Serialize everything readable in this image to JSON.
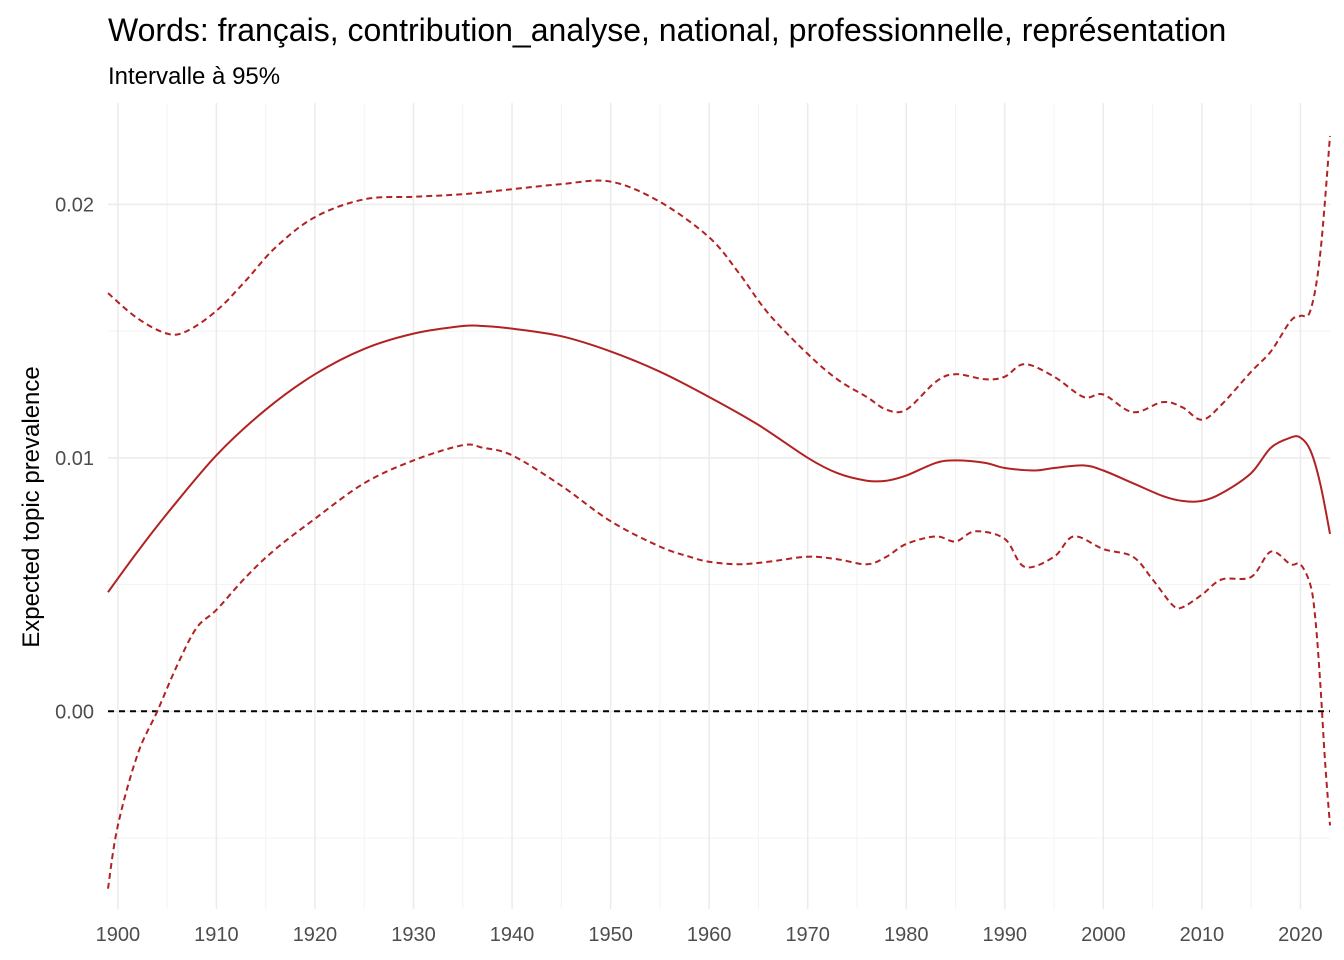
{
  "chart_data": {
    "type": "line",
    "title": "Words: français, contribution_analyse, national, professionnelle, représentation",
    "subtitle": "Intervalle à 95%",
    "xlabel": "",
    "ylabel": "Expected topic prevalence",
    "xlim": [
      1899,
      2023
    ],
    "ylim": [
      -0.0078,
      0.024
    ],
    "x_ticks": [
      1900,
      1910,
      1920,
      1930,
      1940,
      1950,
      1960,
      1970,
      1980,
      1990,
      2000,
      2010,
      2020
    ],
    "x_tick_labels": [
      "1900",
      "1910",
      "1920",
      "1930",
      "1940",
      "1950",
      "1960",
      "1970",
      "1980",
      "1990",
      "2000",
      "2010",
      "2020"
    ],
    "y_ticks": [
      0.0,
      0.01,
      0.02
    ],
    "y_tick_labels": [
      "0.00",
      "0.01",
      "0.02"
    ],
    "grid": true,
    "reference_line": {
      "y": 0,
      "style": "dashed",
      "color": "#000000"
    },
    "colors": {
      "series": "#b22222",
      "reference": "#000000"
    },
    "series": [
      {
        "role": "estimate",
        "style": "solid",
        "x": [
          1899,
          1902,
          1905,
          1910,
          1915,
          1920,
          1925,
          1930,
          1935,
          1937,
          1940,
          1945,
          1950,
          1955,
          1960,
          1965,
          1970,
          1973,
          1976,
          1978,
          1980,
          1983,
          1985,
          1988,
          1990,
          1993,
          1995,
          1998,
          2000,
          2003,
          2006,
          2008,
          2010,
          2012,
          2015,
          2017,
          2019,
          2020,
          2021,
          2022,
          2023
        ],
        "y": [
          0.0047,
          0.0063,
          0.0078,
          0.0101,
          0.0119,
          0.0133,
          0.0143,
          0.0149,
          0.0152,
          0.0152,
          0.0151,
          0.0148,
          0.0142,
          0.0134,
          0.0124,
          0.0113,
          0.01,
          0.0094,
          0.0091,
          0.0091,
          0.0093,
          0.0098,
          0.0099,
          0.0098,
          0.0096,
          0.0095,
          0.0096,
          0.0097,
          0.0095,
          0.009,
          0.0085,
          0.0083,
          0.0083,
          0.0086,
          0.0094,
          0.0104,
          0.0108,
          0.0108,
          0.0103,
          0.009,
          0.007
        ]
      },
      {
        "role": "upper 95%",
        "style": "dashed",
        "x": [
          1899,
          1902,
          1905,
          1907,
          1910,
          1913,
          1916,
          1920,
          1925,
          1930,
          1935,
          1940,
          1945,
          1950,
          1955,
          1960,
          1963,
          1966,
          1970,
          1973,
          1976,
          1978,
          1980,
          1983,
          1985,
          1988,
          1990,
          1992,
          1995,
          1998,
          2000,
          2003,
          2006,
          2008,
          2010,
          2012,
          2015,
          2017,
          2019,
          2020,
          2021,
          2022,
          2023
        ],
        "y": [
          0.0165,
          0.0155,
          0.0149,
          0.015,
          0.0158,
          0.017,
          0.0183,
          0.0195,
          0.0202,
          0.0203,
          0.0204,
          0.0206,
          0.0208,
          0.0209,
          0.0201,
          0.0187,
          0.0173,
          0.0157,
          0.0141,
          0.0131,
          0.0124,
          0.0119,
          0.0119,
          0.013,
          0.0133,
          0.0131,
          0.0132,
          0.0137,
          0.0132,
          0.0124,
          0.0125,
          0.0118,
          0.0122,
          0.012,
          0.0115,
          0.0121,
          0.0134,
          0.0142,
          0.0154,
          0.0156,
          0.0158,
          0.018,
          0.0227
        ]
      },
      {
        "role": "lower 95%",
        "style": "dashed",
        "x": [
          1899,
          1900,
          1902,
          1904,
          1906,
          1908,
          1910,
          1913,
          1916,
          1920,
          1925,
          1930,
          1935,
          1937,
          1940,
          1945,
          1950,
          1955,
          1958,
          1960,
          1963,
          1966,
          1970,
          1973,
          1976,
          1978,
          1980,
          1983,
          1985,
          1987,
          1990,
          1992,
          1995,
          1997,
          2000,
          2003,
          2005,
          2007,
          2008,
          2010,
          2012,
          2015,
          2017,
          2019,
          2020,
          2021,
          2021.5,
          2022,
          2022.5,
          2023
        ],
        "y": [
          -0.007,
          -0.0045,
          -0.0017,
          0.0,
          0.0018,
          0.0033,
          0.004,
          0.0053,
          0.0064,
          0.0076,
          0.009,
          0.0099,
          0.0105,
          0.0104,
          0.0101,
          0.0089,
          0.0075,
          0.0065,
          0.0061,
          0.0059,
          0.0058,
          0.0059,
          0.0061,
          0.006,
          0.0058,
          0.0061,
          0.0066,
          0.0069,
          0.0067,
          0.0071,
          0.0068,
          0.0057,
          0.0061,
          0.0069,
          0.0064,
          0.0061,
          0.0052,
          0.0042,
          0.0041,
          0.0046,
          0.0052,
          0.0053,
          0.0063,
          0.0058,
          0.0058,
          0.005,
          0.0037,
          0.0012,
          -0.002,
          -0.0045
        ]
      }
    ]
  }
}
